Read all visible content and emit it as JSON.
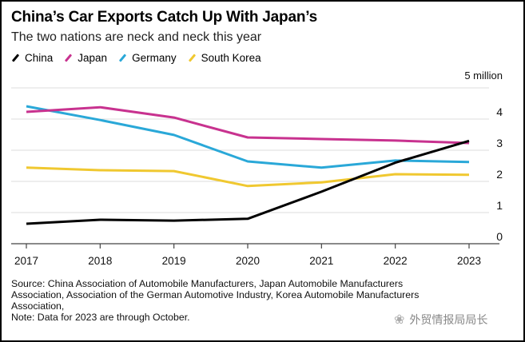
{
  "chart_data": {
    "type": "line",
    "title": "China’s Car Exports Catch Up With Japan’s",
    "subtitle": "The two nations are neck and neck this year",
    "xlabel": "",
    "ylabel": "",
    "y_unit_label": "5 million",
    "ylim": [
      0,
      5
    ],
    "y_ticks": [
      0,
      1,
      2,
      3,
      4,
      5
    ],
    "y_tick_labels": [
      "0",
      "1",
      "2",
      "3",
      "4",
      "5 million"
    ],
    "grid": true,
    "legend_position": "top-left",
    "x": [
      "2017",
      "2018",
      "2019",
      "2020",
      "2021",
      "2022",
      "2023"
    ],
    "series": [
      {
        "name": "China",
        "color": "#000000",
        "values": [
          0.64,
          0.77,
          0.74,
          0.8,
          1.67,
          2.6,
          3.3
        ]
      },
      {
        "name": "Japan",
        "color": "#c8328f",
        "values": [
          4.23,
          4.38,
          4.05,
          3.41,
          3.36,
          3.31,
          3.23
        ]
      },
      {
        "name": "Germany",
        "color": "#2aa8d8",
        "values": [
          4.41,
          3.97,
          3.49,
          2.64,
          2.44,
          2.67,
          2.62
        ]
      },
      {
        "name": "South Korea",
        "color": "#f0c830",
        "values": [
          2.44,
          2.36,
          2.33,
          1.85,
          1.97,
          2.23,
          2.21
        ]
      }
    ]
  },
  "footer": {
    "source_lines": [
      "Source: China Association of Automobile Manufacturers, Japan Automobile Manufacturers",
      "Association, Association of the German Automotive Industry, Korea Automobile Manufacturers",
      "Association,",
      "Note: Data for 2023 are through October."
    ],
    "watermark": "外贸情报局局长",
    "watermark_icon": "wechat-icon"
  }
}
